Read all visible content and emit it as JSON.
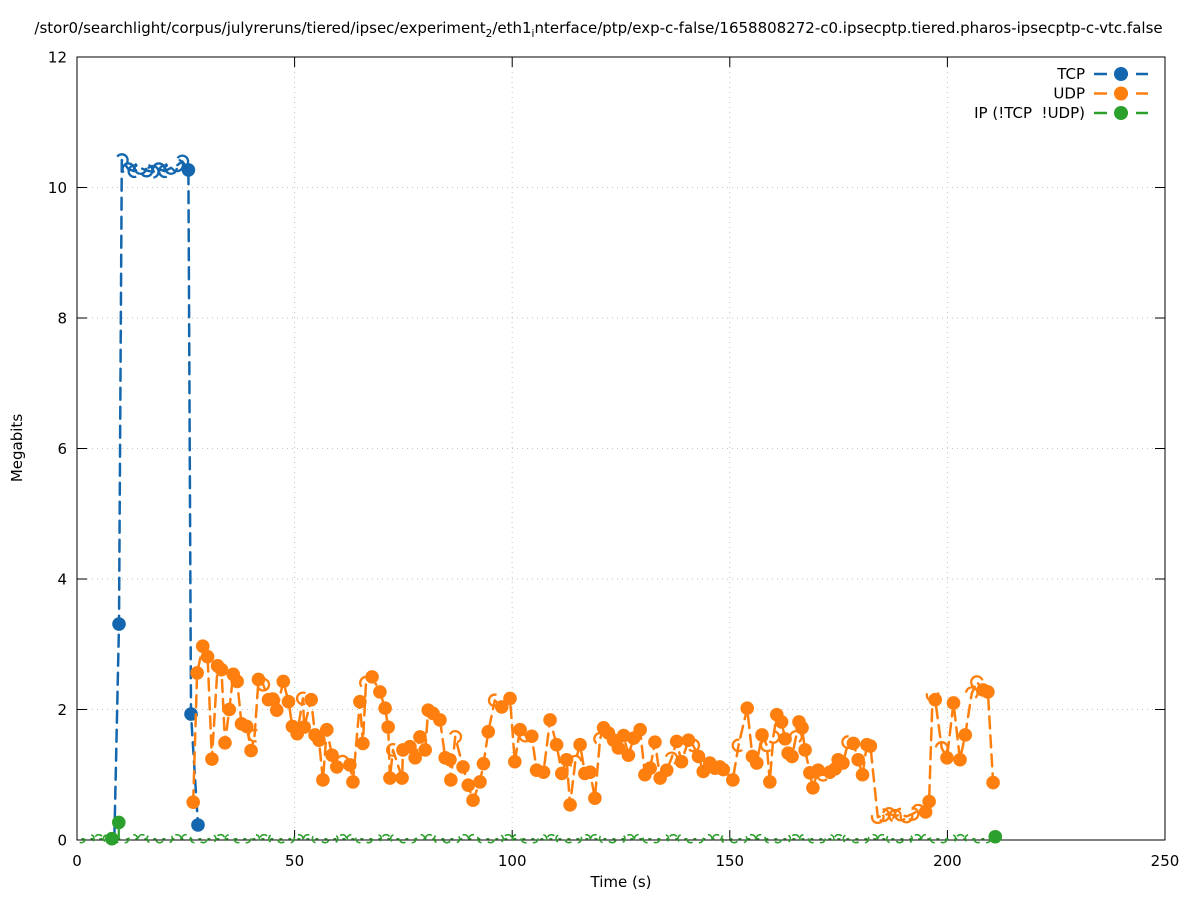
{
  "chart_data": {
    "type": "line",
    "title_parts": [
      {
        "text": "/stor0/searchlight/corpus/julyreruns/tiered/ipsec/experiment"
      },
      {
        "text": "2",
        "sub": true
      },
      {
        "text": "/eth1"
      },
      {
        "text": "i",
        "sub": true
      },
      {
        "text": "nterface/ptp/exp-c-false/1658808272-c0.ipsecptp.tiered.pharos-ipsecptp-c-vtc.false"
      }
    ],
    "xlabel": "Time (s)",
    "ylabel": "Megabits",
    "xlim": [
      0,
      250
    ],
    "ylim": [
      0,
      12
    ],
    "xticks": [
      0,
      50,
      100,
      150,
      200,
      250
    ],
    "yticks": [
      0,
      2,
      4,
      6,
      8,
      10,
      12
    ],
    "grid": "dotted",
    "legend_position": "top-right-inside",
    "line_style": "dashed-with-points",
    "series": [
      {
        "id": "tcp",
        "name": "TCP",
        "color": "#1467ae",
        "points": [
          [
            8.6,
            0.05,
            "n"
          ],
          [
            9.65,
            3.31
          ],
          [
            10.3,
            10.42,
            "a"
          ],
          [
            11.8,
            10.28,
            "a"
          ],
          [
            13.2,
            10.25,
            "a"
          ],
          [
            14.6,
            10.3,
            "a"
          ],
          [
            16,
            10.26,
            "a"
          ],
          [
            17.4,
            10.24,
            "a"
          ],
          [
            18.8,
            10.28,
            "a"
          ],
          [
            20.2,
            10.25,
            "a"
          ],
          [
            21.6,
            10.3,
            "a"
          ],
          [
            23,
            10.34,
            "a"
          ],
          [
            24.2,
            10.4,
            "a"
          ],
          [
            25.6,
            10.27
          ],
          [
            26.2,
            1.93
          ],
          [
            27.8,
            0.23
          ]
        ]
      },
      {
        "id": "udp",
        "name": "UDP",
        "color": "#ff7f0e",
        "points": [
          [
            26.7,
            0.58
          ],
          [
            27.6,
            2.56
          ],
          [
            28.9,
            2.97
          ],
          [
            30,
            2.81
          ],
          [
            31,
            1.24
          ],
          [
            32.3,
            2.67
          ],
          [
            33.2,
            2.61
          ],
          [
            34,
            1.49
          ],
          [
            35,
            2.0
          ],
          [
            35.9,
            2.54
          ],
          [
            36.8,
            2.43
          ],
          [
            37.8,
            1.78
          ],
          [
            39,
            1.74
          ],
          [
            40,
            1.37
          ],
          [
            40.8,
            1.6,
            "a"
          ],
          [
            41.7,
            2.46
          ],
          [
            42.8,
            2.38,
            "a"
          ],
          [
            44,
            2.15
          ],
          [
            45,
            2.16
          ],
          [
            45.9,
            1.99
          ],
          [
            47.4,
            2.43
          ],
          [
            48.6,
            2.12
          ],
          [
            49.5,
            1.74
          ],
          [
            50.6,
            1.63
          ],
          [
            51.9,
            2.17,
            "a"
          ],
          [
            52.2,
            1.73
          ],
          [
            53.8,
            2.15
          ],
          [
            54.7,
            1.61
          ],
          [
            55.6,
            1.53
          ],
          [
            56.5,
            0.92
          ],
          [
            57.4,
            1.69
          ],
          [
            58.6,
            1.3
          ],
          [
            59.7,
            1.12
          ],
          [
            61,
            1.2,
            "a"
          ],
          [
            62.7,
            1.15
          ],
          [
            63.4,
            0.89
          ],
          [
            65,
            2.12
          ],
          [
            65.7,
            1.48
          ],
          [
            66.4,
            2.41,
            "a"
          ],
          [
            67.8,
            2.5
          ],
          [
            69.6,
            2.27
          ],
          [
            70.8,
            2.02
          ],
          [
            71.5,
            1.73
          ],
          [
            71.9,
            0.95
          ],
          [
            72.6,
            1.38,
            "a"
          ],
          [
            74.7,
            0.95
          ],
          [
            74.9,
            1.38
          ],
          [
            76.5,
            1.43
          ],
          [
            77.7,
            1.26
          ],
          [
            78.8,
            1.58
          ],
          [
            80,
            1.38
          ],
          [
            80.7,
            1.99
          ],
          [
            81.8,
            1.94
          ],
          [
            83.4,
            1.84
          ],
          [
            84.6,
            1.26
          ],
          [
            85.7,
            1.23
          ],
          [
            85.9,
            0.92
          ],
          [
            86.9,
            1.58,
            "a"
          ],
          [
            88.7,
            1.12
          ],
          [
            89.9,
            0.84
          ],
          [
            91,
            0.61
          ],
          [
            92.6,
            0.89
          ],
          [
            93.4,
            1.17
          ],
          [
            94.5,
            1.66
          ],
          [
            96,
            2.14,
            "a"
          ],
          [
            97.6,
            2.04
          ],
          [
            99.5,
            2.17
          ],
          [
            100.6,
            1.2
          ],
          [
            101.8,
            1.69
          ],
          [
            103,
            1.6,
            "a"
          ],
          [
            104.5,
            1.59
          ],
          [
            105.6,
            1.07
          ],
          [
            107.2,
            1.04
          ],
          [
            108.7,
            1.84
          ],
          [
            110.2,
            1.46
          ],
          [
            111.4,
            1.02
          ],
          [
            112.5,
            1.23
          ],
          [
            113.3,
            0.54
          ],
          [
            114.5,
            1.2,
            "a"
          ],
          [
            115.6,
            1.46
          ],
          [
            116.7,
            1.02
          ],
          [
            117.9,
            1.04
          ],
          [
            119,
            0.64
          ],
          [
            120.2,
            1.55,
            "a"
          ],
          [
            121,
            1.72
          ],
          [
            122.1,
            1.64
          ],
          [
            123.3,
            1.53
          ],
          [
            124.4,
            1.41
          ],
          [
            125.6,
            1.6
          ],
          [
            126.7,
            1.3
          ],
          [
            127.9,
            1.56
          ],
          [
            129.4,
            1.69
          ],
          [
            130.5,
            1.0
          ],
          [
            131.7,
            1.1
          ],
          [
            132.8,
            1.5
          ],
          [
            134,
            0.95
          ],
          [
            135.5,
            1.07
          ],
          [
            136.6,
            1.25,
            "a"
          ],
          [
            137.8,
            1.51
          ],
          [
            138.9,
            1.2
          ],
          [
            140.5,
            1.53
          ],
          [
            141.6,
            1.45,
            "a"
          ],
          [
            142.8,
            1.28
          ],
          [
            143.9,
            1.05
          ],
          [
            145.4,
            1.18
          ],
          [
            146.6,
            1.1
          ],
          [
            147.7,
            1.12
          ],
          [
            148.5,
            1.08
          ],
          [
            150.7,
            0.92
          ],
          [
            152,
            1.45,
            "a"
          ],
          [
            154,
            2.02
          ],
          [
            155.2,
            1.28
          ],
          [
            156.2,
            1.18
          ],
          [
            157.4,
            1.61
          ],
          [
            158.5,
            1.45,
            "a"
          ],
          [
            159.2,
            0.89
          ],
          [
            160,
            1.58,
            "a"
          ],
          [
            160.8,
            1.92
          ],
          [
            161.9,
            1.81
          ],
          [
            162.7,
            1.55
          ],
          [
            163.4,
            1.33
          ],
          [
            164.3,
            1.28
          ],
          [
            165.2,
            1.58,
            "a"
          ],
          [
            165.9,
            1.81
          ],
          [
            166.6,
            1.72
          ],
          [
            167.3,
            1.38
          ],
          [
            168.4,
            1.03
          ],
          [
            169.1,
            0.8
          ],
          [
            170.3,
            1.07
          ],
          [
            171.4,
            1.0,
            "a"
          ],
          [
            173,
            1.04
          ],
          [
            174.2,
            1.09
          ],
          [
            174.9,
            1.23
          ],
          [
            176,
            1.18
          ],
          [
            177.2,
            1.5,
            "a"
          ],
          [
            178.4,
            1.48
          ],
          [
            179.5,
            1.23
          ],
          [
            180.5,
            1.0
          ],
          [
            181.5,
            1.46
          ],
          [
            182.3,
            1.44
          ],
          [
            184,
            0.35,
            "a"
          ],
          [
            185.3,
            0.38,
            "a"
          ],
          [
            186.6,
            0.4,
            "a"
          ],
          [
            188,
            0.37,
            "a"
          ],
          [
            189.3,
            0.39,
            "a"
          ],
          [
            190.6,
            0.36,
            "a"
          ],
          [
            192,
            0.4,
            "a"
          ],
          [
            193.3,
            0.45,
            "a"
          ],
          [
            195,
            0.43
          ],
          [
            195.8,
            0.59
          ],
          [
            196.6,
            2.22,
            "a"
          ],
          [
            197.2,
            2.15
          ],
          [
            198.7,
            1.41,
            "a"
          ],
          [
            199.9,
            1.26
          ],
          [
            201.4,
            2.1
          ],
          [
            202.9,
            1.23
          ],
          [
            204.1,
            1.61
          ],
          [
            205.6,
            2.25,
            "a"
          ],
          [
            206.8,
            2.42,
            "a"
          ],
          [
            208.2,
            2.3
          ],
          [
            209.3,
            2.27
          ],
          [
            210.5,
            0.88
          ]
        ]
      },
      {
        "id": "ip-not-tcp-not-udp",
        "name": "IP (!TCP  !UDP)",
        "color": "#2ca02c",
        "points": [
          [
            8,
            0.02
          ],
          [
            9.6,
            0.27
          ],
          [
            211,
            0.05
          ]
        ],
        "baseline": {
          "from": 1,
          "to": 210,
          "v": 0.02,
          "step": 2
        }
      }
    ]
  }
}
